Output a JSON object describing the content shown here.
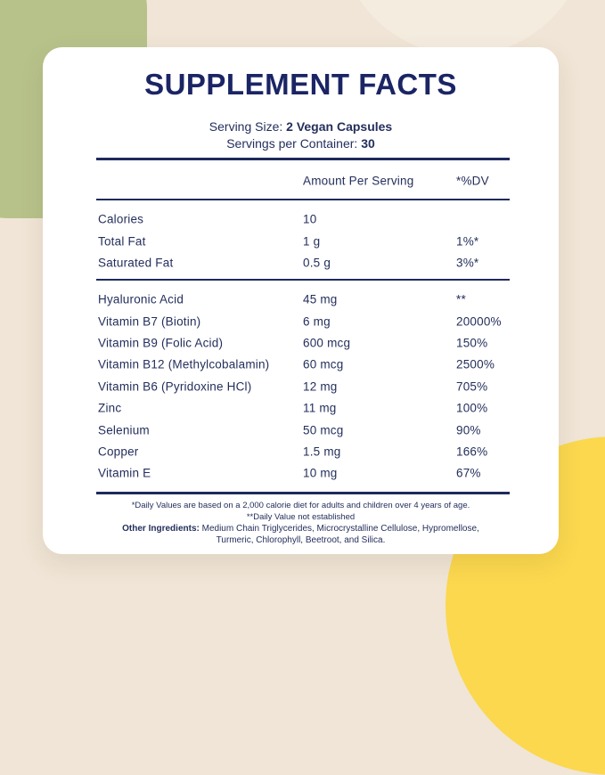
{
  "colors": {
    "background": "#f0e5d6",
    "card": "#ffffff",
    "navy_text": "#242f5c",
    "title_navy": "#1b2565",
    "green_blob": "#b7c28a",
    "pale_circle": "#f4ecdf",
    "yellow_circle": "#fbd84e"
  },
  "card": {
    "title": "SUPPLEMENT FACTS",
    "serving_size_label": "Serving Size: ",
    "serving_size_value": "2 Vegan Capsules",
    "servings_label": "Servings per Container: ",
    "servings_value": "30"
  },
  "table": {
    "columns": {
      "amount": "Amount Per Serving",
      "dv": "*%DV"
    },
    "sections": [
      {
        "rows": [
          {
            "name": "Calories",
            "amount": "10",
            "dv": ""
          },
          {
            "name": "Total Fat",
            "amount": "1 g",
            "dv": "1%*"
          },
          {
            "name": "Saturated Fat",
            "amount": "0.5 g",
            "dv": "3%*"
          }
        ]
      },
      {
        "rows": [
          {
            "name": "Hyaluronic Acid",
            "amount": "45 mg",
            "dv": "**"
          },
          {
            "name": "Vitamin B7 (Biotin)",
            "amount": "6 mg",
            "dv": "20000%"
          },
          {
            "name": "Vitamin B9 (Folic Acid)",
            "amount": "600 mcg",
            "dv": "150%"
          },
          {
            "name": "Vitamin B12 (Methylcobalamin)",
            "amount": "60 mcg",
            "dv": "2500%"
          },
          {
            "name": "Vitamin B6 (Pyridoxine HCl)",
            "amount": "12 mg",
            "dv": "705%"
          },
          {
            "name": "Zinc",
            "amount": "11 mg",
            "dv": "100%"
          },
          {
            "name": "Selenium",
            "amount": "50 mcg",
            "dv": "90%"
          },
          {
            "name": "Copper",
            "amount": "1.5 mg",
            "dv": "166%"
          },
          {
            "name": "Vitamin E",
            "amount": "10 mg",
            "dv": "67%"
          }
        ]
      }
    ]
  },
  "footnotes": {
    "daily_values": "*Daily Values are based on a 2,000 calorie diet for adults and children over 4 years of age.",
    "not_established": "**Daily Value not established",
    "other_ingredients_label": "Other Ingredients:",
    "other_ingredients_text": " Medium Chain Triglycerides, Microcrystalline Cellulose, Hypromellose, Turmeric, Chlorophyll, Beetroot, and Silica."
  }
}
